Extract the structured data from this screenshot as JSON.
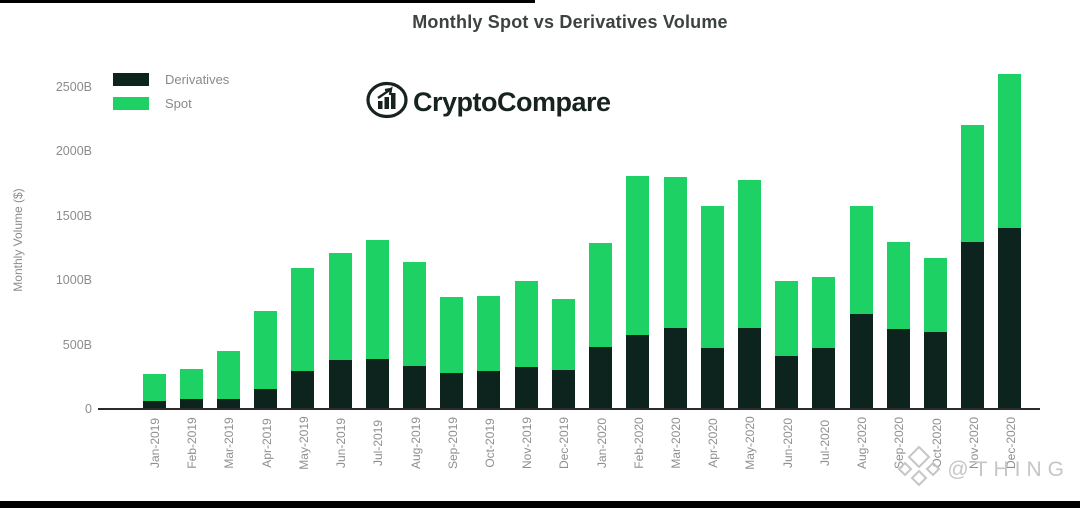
{
  "title": "Monthly Spot vs Derivatives Volume",
  "logo": {
    "text": "CryptoCompare",
    "icon": "cryptocompare-chart-in-ellipse"
  },
  "legend": {
    "items": [
      {
        "label": "Derivatives",
        "color": "#0d231d"
      },
      {
        "label": "Spot",
        "color": "#1ed164"
      }
    ]
  },
  "watermark": {
    "text": "@THING",
    "icon": "diamond-cluster"
  },
  "y_axis": {
    "title": "Monthly Volume ($)",
    "ticks": [
      {
        "label": "0",
        "value": 0
      },
      {
        "label": "500B",
        "value": 500
      },
      {
        "label": "1000B",
        "value": 1000
      },
      {
        "label": "1500B",
        "value": 1500
      },
      {
        "label": "2000B",
        "value": 2000
      },
      {
        "label": "2500B",
        "value": 2500
      }
    ]
  },
  "chart_data": {
    "type": "bar",
    "stacked": true,
    "title": "Monthly Spot vs Derivatives Volume",
    "xlabel": "",
    "ylabel": "Monthly Volume ($)",
    "unit": "billions USD",
    "ylim": [
      0,
      2500
    ],
    "grid": false,
    "legend_position": "top-left",
    "categories": [
      "Jan-2019",
      "Feb-2019",
      "Mar-2019",
      "Apr-2019",
      "May-2019",
      "Jun-2019",
      "Jul-2019",
      "Aug-2019",
      "Sep-2019",
      "Oct-2019",
      "Nov-2019",
      "Dec-2019",
      "Jan-2020",
      "Feb-2020",
      "Mar-2020",
      "Apr-2020",
      "May-2020",
      "Jun-2020",
      "Jul-2020",
      "Aug-2020",
      "Sep-2020",
      "Oct-2020",
      "Nov-2020",
      "Dec-2020"
    ],
    "series": [
      {
        "name": "Derivatives",
        "color": "#0d231d",
        "values": [
          70,
          85,
          85,
          160,
          300,
          385,
          395,
          340,
          290,
          300,
          330,
          310,
          490,
          585,
          635,
          485,
          635,
          420,
          480,
          745,
          625,
          605,
          1305,
          1410
        ]
      },
      {
        "name": "Spot",
        "color": "#1ed164",
        "values": [
          210,
          230,
          370,
          610,
          800,
          835,
          925,
          810,
          590,
          585,
          675,
          550,
          810,
          1235,
          1175,
          1095,
          1150,
          580,
          550,
          840,
          680,
          575,
          910,
          1195
        ]
      }
    ]
  }
}
